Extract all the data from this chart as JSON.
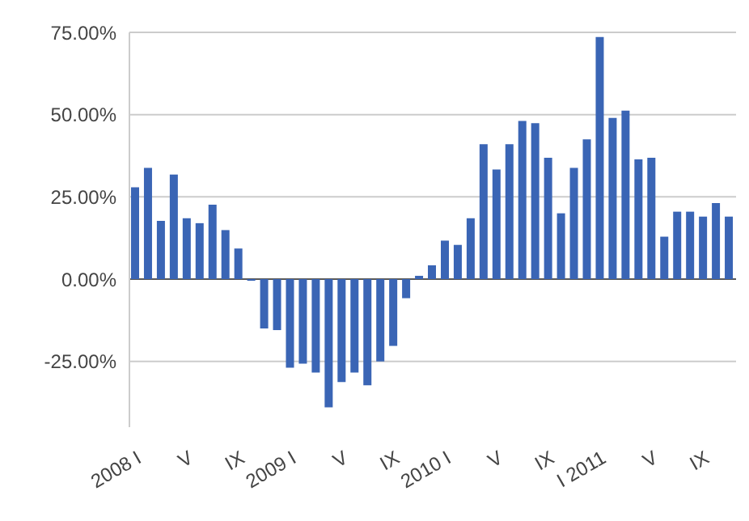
{
  "chart_data": {
    "type": "bar",
    "categories": [
      "2008 I",
      null,
      null,
      null,
      "V",
      null,
      null,
      null,
      "IX",
      null,
      null,
      null,
      "2009 I",
      null,
      null,
      null,
      "V",
      null,
      null,
      null,
      "IX",
      null,
      null,
      null,
      "2010 I",
      null,
      null,
      null,
      "V",
      null,
      null,
      null,
      "IX",
      null,
      null,
      null,
      "I 2011",
      null,
      null,
      null,
      "V",
      null,
      null,
      null,
      "IX",
      null,
      null
    ],
    "values": [
      27.9,
      33.8,
      17.7,
      31.8,
      18.5,
      17,
      22.6,
      14.9,
      9.3,
      -0.5,
      -15,
      -15.5,
      -26.9,
      -25.7,
      -28.4,
      -39,
      -31.3,
      -28.4,
      -32.3,
      -25,
      -20.3,
      -5.8,
      1,
      4.2,
      11.7,
      10.4,
      18.5,
      41,
      33.3,
      41,
      48.1,
      47.4,
      36.9,
      20,
      33.8,
      42.5,
      73.6,
      49,
      51.2,
      36.4,
      36.9,
      12.9,
      20.5,
      20.5,
      19,
      23.1,
      19
    ],
    "color": "#3a65b5",
    "ylim": [
      -45,
      75
    ],
    "yticks": [
      {
        "value": -25,
        "label": "-25.00%"
      },
      {
        "value": 0,
        "label": "0.00%"
      },
      {
        "value": 25,
        "label": "25.00%"
      },
      {
        "value": 50,
        "label": "50.00%"
      },
      {
        "value": 75,
        "label": "75.00%"
      }
    ],
    "grid": "y"
  }
}
